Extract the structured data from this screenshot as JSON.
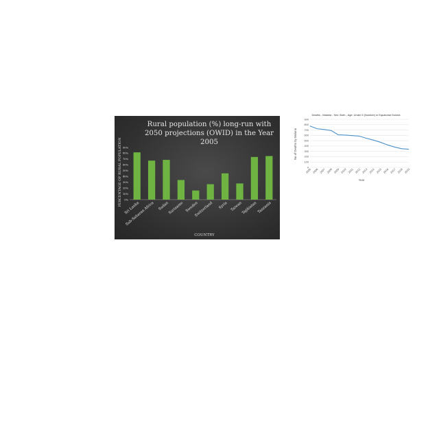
{
  "chart_data": [
    {
      "type": "bar",
      "title": "Rural population (%) long-run with 2050 projections (OWID) in the Year 2005",
      "title_lines": [
        "Rural population (%) long-run with",
        "2050 projections (OWID) in the Year",
        "2005"
      ],
      "xlabel": "COUNTRY",
      "ylabel": "PERCENTAGE OF RURAL POPULATION",
      "categories": [
        "Sri Lanka",
        "Sub-Saharan Africa",
        "Sudan",
        "Suriname",
        "Sweden",
        "Switzerland",
        "Syria",
        "Taiwan",
        "Tajikistan",
        "Tanzania"
      ],
      "values": [
        81.6,
        67.3,
        68.6,
        33.8,
        15.7,
        26.6,
        45.3,
        27.9,
        73.6,
        75.2
      ],
      "ylim": [
        0,
        90
      ],
      "yticks": [
        "0%",
        "10%",
        "20%",
        "30%",
        "40%",
        "50%",
        "60%",
        "70%",
        "80%",
        "90%"
      ],
      "colors": {
        "bar": "#6fb443",
        "background": "#333333",
        "text": "#e6e6e6"
      },
      "grid": false
    },
    {
      "type": "line",
      "title": "Deaths - Malaria - Sex: Both - Age: Under 5 (Number) in Equatorial Guinea",
      "xlabel": "Year",
      "ylabel": "No of Deaths by Malaria",
      "x": [
        "2005",
        "2006",
        "2007",
        "2008",
        "2009",
        "2010",
        "2011",
        "2012",
        "2013",
        "2014",
        "2015",
        "2016",
        "2017",
        "2018",
        "2019"
      ],
      "series": [
        {
          "values": [
            775,
            725,
            710,
            690,
            610,
            605,
            595,
            585,
            545,
            510,
            470,
            420,
            380,
            350,
            340
          ]
        }
      ],
      "ylim": [
        0,
        900
      ],
      "yticks": [
        "0",
        "100",
        "200",
        "300",
        "400",
        "500",
        "600",
        "700",
        "800",
        "900"
      ],
      "colors": {
        "line": "#4a90c8",
        "grid": "#e2e2e2",
        "text": "#555555"
      },
      "grid": true
    }
  ]
}
